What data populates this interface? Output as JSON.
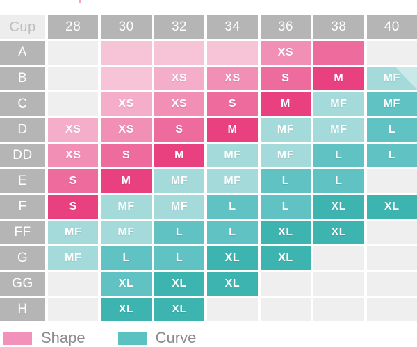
{
  "chart_data": {
    "type": "heatmap",
    "title": "",
    "corner_label": "Cup",
    "columns": [
      "28",
      "30",
      "32",
      "34",
      "36",
      "38",
      "40"
    ],
    "rows": [
      {
        "cup": "A",
        "cells": [
          {
            "variant": "empty",
            "label": ""
          },
          {
            "variant": "p1",
            "label": ""
          },
          {
            "variant": "p1",
            "label": ""
          },
          {
            "variant": "p1",
            "label": ""
          },
          {
            "variant": "p3",
            "label": "XS"
          },
          {
            "variant": "p4",
            "label": ""
          },
          {
            "variant": "empty",
            "label": ""
          }
        ]
      },
      {
        "cup": "B",
        "cells": [
          {
            "variant": "empty",
            "label": ""
          },
          {
            "variant": "p1",
            "label": ""
          },
          {
            "variant": "p2",
            "label": "XS"
          },
          {
            "variant": "p3",
            "label": "XS"
          },
          {
            "variant": "p4",
            "label": "S"
          },
          {
            "variant": "p5",
            "label": "M"
          },
          {
            "variant": "t1",
            "label": "MF",
            "split": true
          }
        ]
      },
      {
        "cup": "C",
        "cells": [
          {
            "variant": "empty",
            "label": ""
          },
          {
            "variant": "p2",
            "label": "XS"
          },
          {
            "variant": "p3",
            "label": "XS"
          },
          {
            "variant": "p4",
            "label": "S"
          },
          {
            "variant": "p5",
            "label": "M"
          },
          {
            "variant": "t1",
            "label": "MF"
          },
          {
            "variant": "t2",
            "label": "MF"
          }
        ]
      },
      {
        "cup": "D",
        "cells": [
          {
            "variant": "p2",
            "label": "XS"
          },
          {
            "variant": "p3",
            "label": "XS"
          },
          {
            "variant": "p4",
            "label": "S"
          },
          {
            "variant": "p5",
            "label": "M"
          },
          {
            "variant": "t1",
            "label": "MF"
          },
          {
            "variant": "t1",
            "label": "MF"
          },
          {
            "variant": "t2",
            "label": "L"
          }
        ]
      },
      {
        "cup": "DD",
        "cells": [
          {
            "variant": "p3",
            "label": "XS"
          },
          {
            "variant": "p4",
            "label": "S"
          },
          {
            "variant": "p5",
            "label": "M"
          },
          {
            "variant": "t1",
            "label": "MF"
          },
          {
            "variant": "t1",
            "label": "MF"
          },
          {
            "variant": "t2",
            "label": "L"
          },
          {
            "variant": "t2",
            "label": "L"
          }
        ]
      },
      {
        "cup": "E",
        "cells": [
          {
            "variant": "p4",
            "label": "S"
          },
          {
            "variant": "p5",
            "label": "M"
          },
          {
            "variant": "t1",
            "label": "MF"
          },
          {
            "variant": "t1",
            "label": "MF"
          },
          {
            "variant": "t2",
            "label": "L"
          },
          {
            "variant": "t2",
            "label": "L"
          },
          {
            "variant": "empty",
            "label": ""
          }
        ]
      },
      {
        "cup": "F",
        "cells": [
          {
            "variant": "p5",
            "label": "S"
          },
          {
            "variant": "t1",
            "label": "MF"
          },
          {
            "variant": "t1",
            "label": "MF"
          },
          {
            "variant": "t2",
            "label": "L"
          },
          {
            "variant": "t2",
            "label": "L"
          },
          {
            "variant": "t3",
            "label": "XL"
          },
          {
            "variant": "t3",
            "label": "XL"
          }
        ]
      },
      {
        "cup": "FF",
        "cells": [
          {
            "variant": "t1",
            "label": "MF"
          },
          {
            "variant": "t1",
            "label": "MF"
          },
          {
            "variant": "t2",
            "label": "L"
          },
          {
            "variant": "t2",
            "label": "L"
          },
          {
            "variant": "t3",
            "label": "XL"
          },
          {
            "variant": "t3",
            "label": "XL"
          },
          {
            "variant": "empty",
            "label": ""
          }
        ]
      },
      {
        "cup": "G",
        "cells": [
          {
            "variant": "t1",
            "label": "MF"
          },
          {
            "variant": "t2",
            "label": "L"
          },
          {
            "variant": "t2",
            "label": "L"
          },
          {
            "variant": "t3",
            "label": "XL"
          },
          {
            "variant": "t3",
            "label": "XL"
          },
          {
            "variant": "empty",
            "label": ""
          },
          {
            "variant": "empty",
            "label": ""
          }
        ]
      },
      {
        "cup": "GG",
        "cells": [
          {
            "variant": "empty",
            "label": ""
          },
          {
            "variant": "t2",
            "label": "XL"
          },
          {
            "variant": "t3",
            "label": "XL"
          },
          {
            "variant": "t3",
            "label": "XL"
          },
          {
            "variant": "empty",
            "label": ""
          },
          {
            "variant": "empty",
            "label": ""
          },
          {
            "variant": "empty",
            "label": ""
          }
        ]
      },
      {
        "cup": "H",
        "cells": [
          {
            "variant": "empty",
            "label": ""
          },
          {
            "variant": "t3",
            "label": "XL"
          },
          {
            "variant": "t3",
            "label": "XL"
          },
          {
            "variant": "empty",
            "label": ""
          },
          {
            "variant": "empty",
            "label": ""
          },
          {
            "variant": "empty",
            "label": ""
          },
          {
            "variant": "empty",
            "label": ""
          }
        ]
      }
    ],
    "legend": [
      {
        "label": "Shape",
        "color": "#F291B9"
      },
      {
        "label": "Curve",
        "color": "#5BC1C1"
      }
    ]
  },
  "palette": {
    "p1": "#F7C3D6",
    "p2": "#F5AECA",
    "p3": "#F18FB4",
    "p4": "#EE6B9D",
    "p5": "#E9417F",
    "t1": "#A5DADB",
    "t2": "#60C2C3",
    "t3": "#3EB4B1",
    "t1_split": "#CCE9EA",
    "empty": "#EFEFEF",
    "header_bg": "#B5B5B5",
    "corner_bg": "#EDEDED",
    "corner_text": "#BDBDBD",
    "legend_text": "#8B8B8B",
    "crop_mark": "#F5A6C1"
  }
}
